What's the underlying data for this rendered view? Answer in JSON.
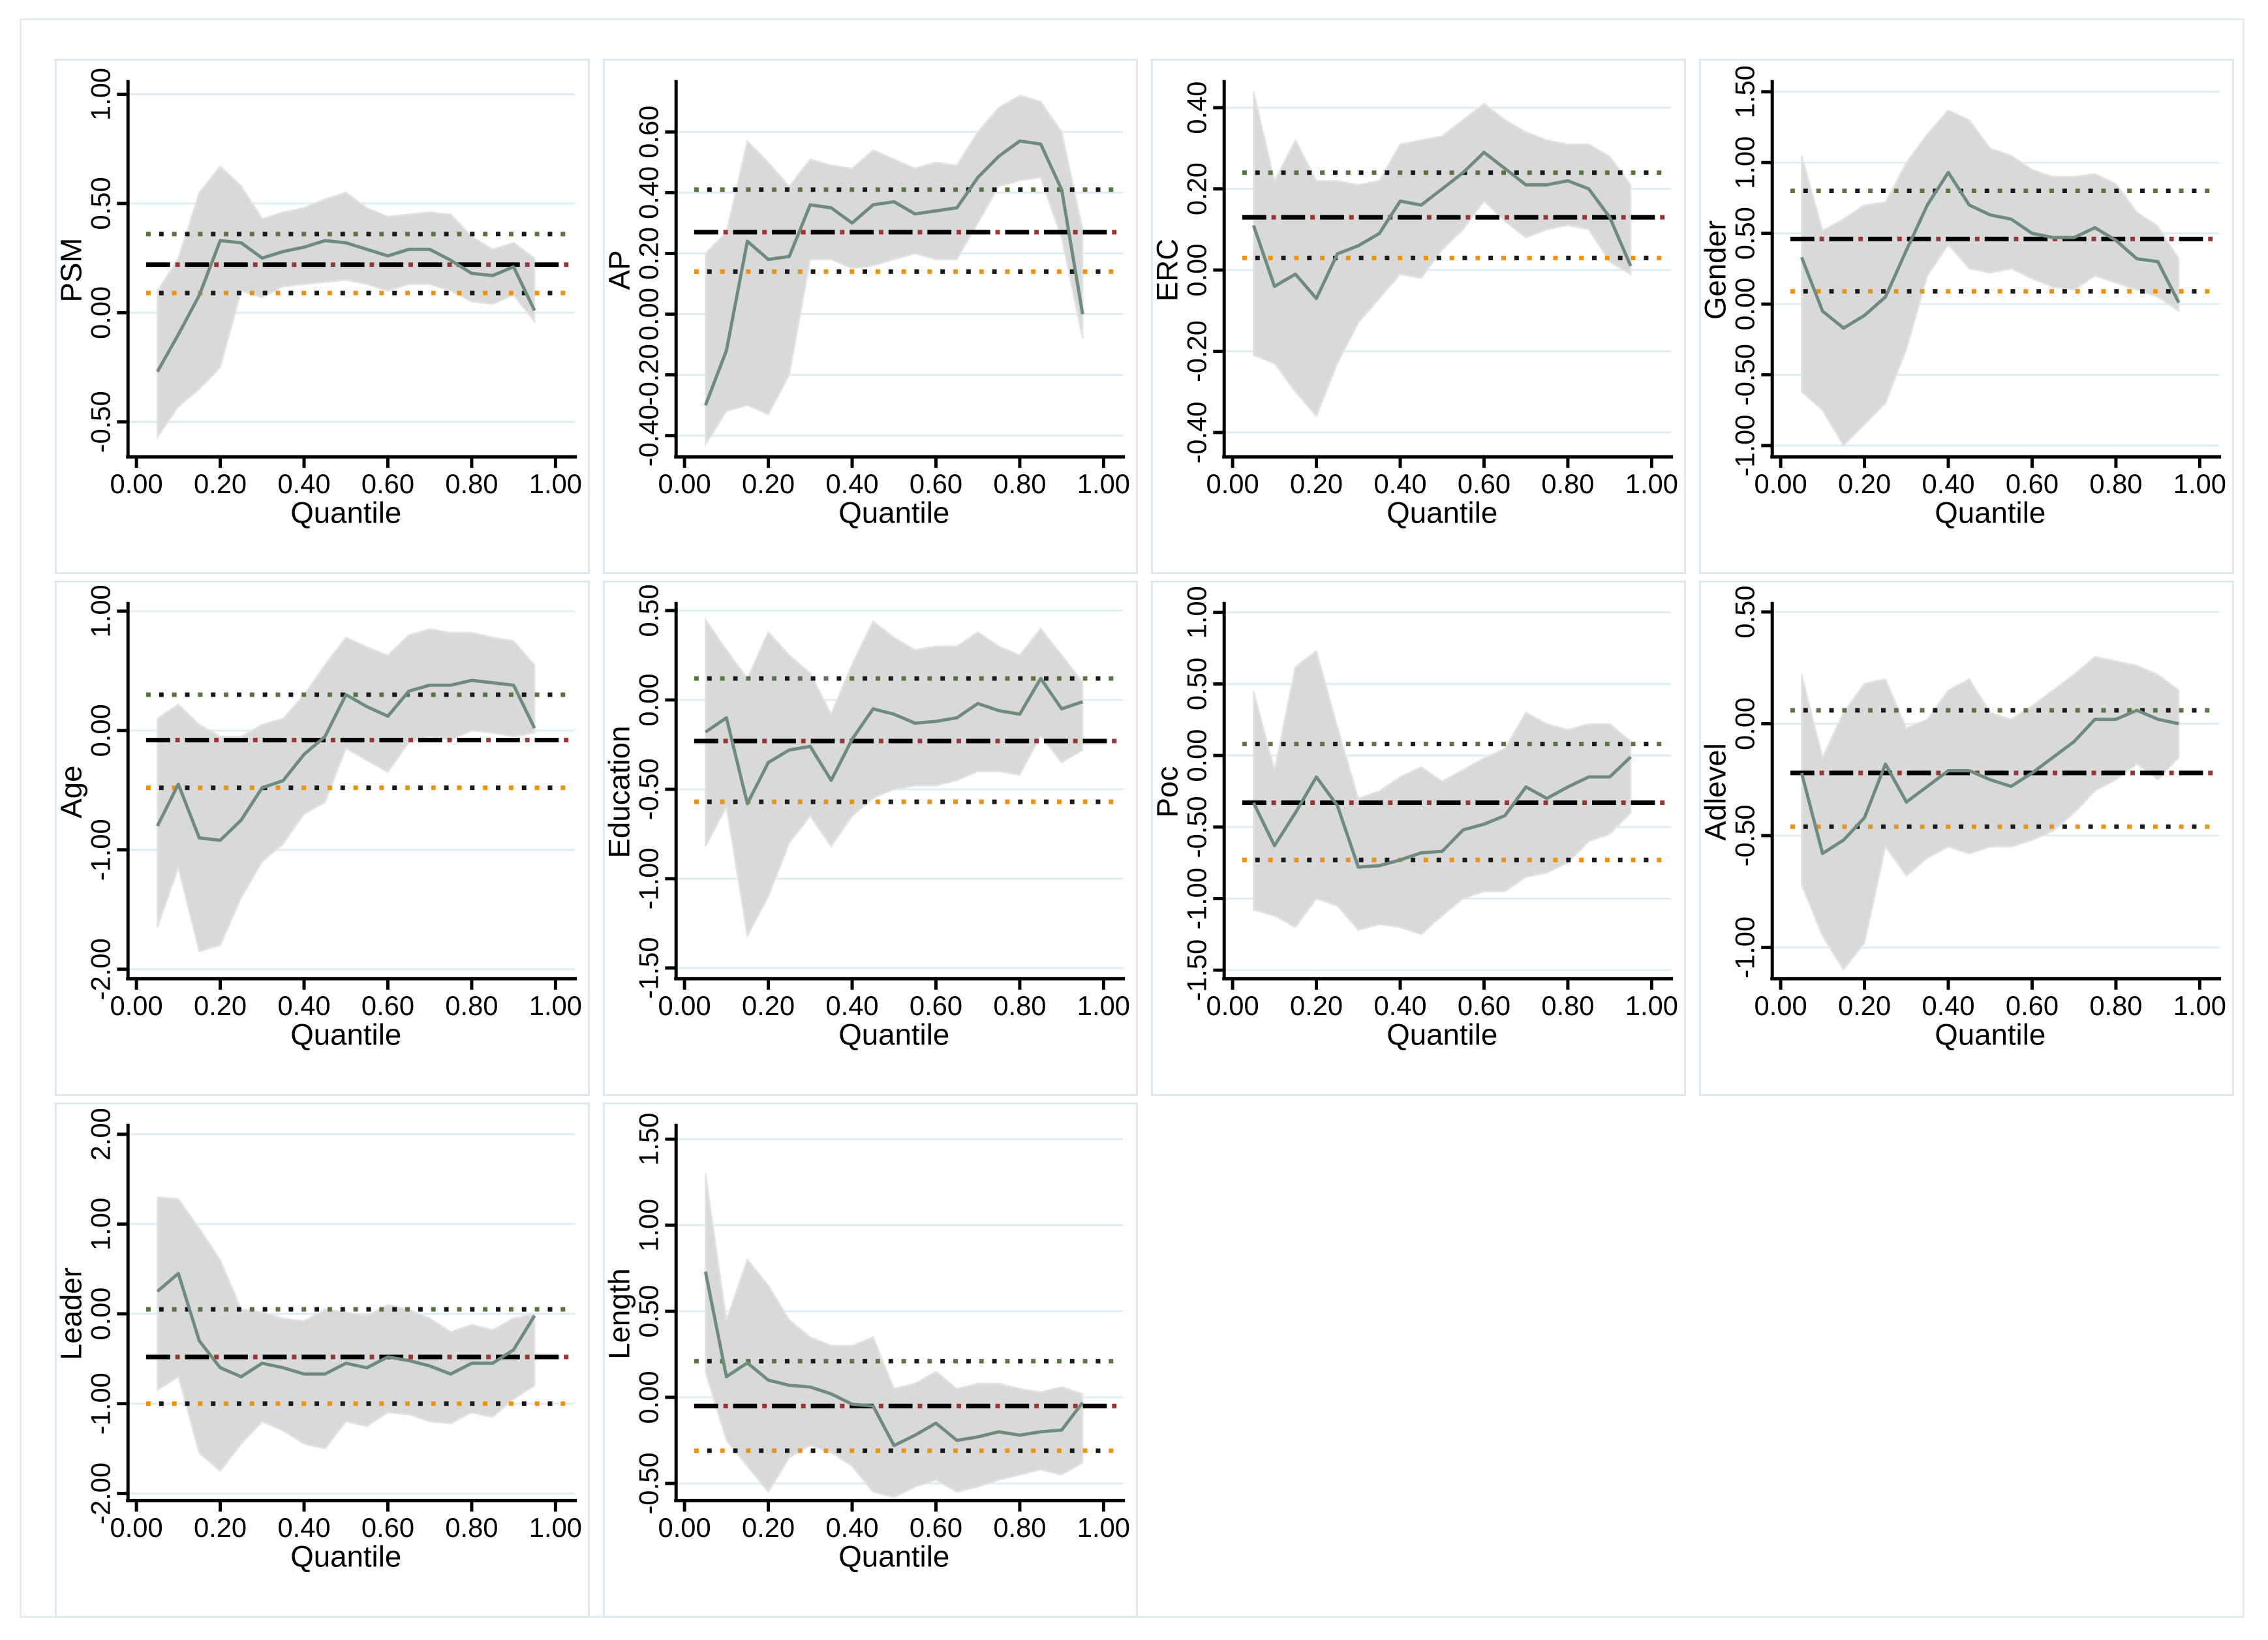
{
  "colors": {
    "qr_line": "#6e8b7d",
    "band_fill": "#d9d9d9",
    "band_edge": "#e4e4e4",
    "ols_dash_black": "#000000",
    "ols_dash_maroon": "#953735",
    "ci_dot_green": "#5c7444",
    "ci_dot_black": "#1a1a1a",
    "ci_dot_orange": "#ec9213",
    "grid": "#dfecf4",
    "axis": "#000000",
    "panel_border": "#dde9f2",
    "figure_border": "#e2edf5",
    "background": "#ffffff"
  },
  "chart_data": {
    "type": "line",
    "description": "Quantile regression coefficient estimates with 95% confidence bands versus OLS estimate and OLS confidence interval",
    "x_label": "Quantile",
    "x_ticks": [
      "0.00",
      "0.20",
      "0.40",
      "0.60",
      "0.80",
      "1.00"
    ],
    "x_range": [
      0,
      1
    ],
    "grid": "horizontal",
    "legend": false,
    "quantiles": [
      0.05,
      0.1,
      0.15,
      0.2,
      0.25,
      0.3,
      0.35,
      0.4,
      0.45,
      0.5,
      0.55,
      0.6,
      0.65,
      0.7,
      0.75,
      0.8,
      0.85,
      0.9,
      0.95
    ],
    "panels": [
      {
        "ylabel": "PSM",
        "ylim": [
          -0.66,
          1.05
        ],
        "y_ticks": [
          "1.00",
          "0.50",
          "0.00",
          "-0.50"
        ],
        "ols_estimate": 0.22,
        "ols_ci_upper": 0.36,
        "ols_ci_lower": 0.09,
        "series": {
          "quantile_estimates": [
            -0.27,
            -0.1,
            0.08,
            0.33,
            0.32,
            0.25,
            0.28,
            0.3,
            0.33,
            0.32,
            0.29,
            0.26,
            0.29,
            0.29,
            0.24,
            0.18,
            0.17,
            0.21,
            0.01
          ],
          "ci_upper": [
            0.1,
            0.25,
            0.55,
            0.67,
            0.58,
            0.43,
            0.46,
            0.48,
            0.52,
            0.55,
            0.48,
            0.44,
            0.45,
            0.46,
            0.45,
            0.35,
            0.29,
            0.32,
            0.25
          ],
          "ci_lower": [
            -0.57,
            -0.43,
            -0.35,
            -0.25,
            0.1,
            0.07,
            0.12,
            0.13,
            0.14,
            0.15,
            0.13,
            0.1,
            0.13,
            0.13,
            0.1,
            0.05,
            0.04,
            0.08,
            -0.04
          ]
        }
      },
      {
        "ylabel": "AP",
        "ylim": [
          -0.47,
          0.76
        ],
        "y_ticks": [
          "0.60",
          "0.40",
          "0.20",
          "0.00",
          "-0.20",
          "-0.40"
        ],
        "ols_estimate": 0.27,
        "ols_ci_upper": 0.41,
        "ols_ci_lower": 0.14,
        "series": {
          "quantile_estimates": [
            -0.3,
            -0.12,
            0.24,
            0.18,
            0.19,
            0.36,
            0.35,
            0.3,
            0.36,
            0.37,
            0.33,
            0.34,
            0.35,
            0.45,
            0.52,
            0.57,
            0.56,
            0.41,
            0.0
          ],
          "ci_upper": [
            0.2,
            0.27,
            0.57,
            0.5,
            0.42,
            0.51,
            0.49,
            0.48,
            0.54,
            0.51,
            0.48,
            0.5,
            0.49,
            0.6,
            0.68,
            0.72,
            0.7,
            0.6,
            0.28
          ],
          "ci_lower": [
            -0.43,
            -0.32,
            -0.3,
            -0.33,
            -0.2,
            0.18,
            0.18,
            0.15,
            0.16,
            0.18,
            0.2,
            0.18,
            0.18,
            0.3,
            0.42,
            0.44,
            0.45,
            0.25,
            -0.08
          ]
        }
      },
      {
        "ylabel": "ERC",
        "ylim": [
          -0.46,
          0.46
        ],
        "y_ticks": [
          "0.40",
          "0.20",
          "0.00",
          "-0.20",
          "-0.40"
        ],
        "ols_estimate": 0.13,
        "ols_ci_upper": 0.24,
        "ols_ci_lower": 0.03,
        "series": {
          "quantile_estimates": [
            0.11,
            -0.04,
            -0.01,
            -0.07,
            0.04,
            0.06,
            0.09,
            0.17,
            0.16,
            0.2,
            0.24,
            0.29,
            0.25,
            0.21,
            0.21,
            0.22,
            0.2,
            0.13,
            0.01
          ],
          "ci_upper": [
            0.44,
            0.22,
            0.32,
            0.22,
            0.22,
            0.21,
            0.22,
            0.31,
            0.32,
            0.33,
            0.37,
            0.41,
            0.37,
            0.34,
            0.32,
            0.31,
            0.31,
            0.28,
            0.21
          ],
          "ci_lower": [
            -0.21,
            -0.23,
            -0.3,
            -0.36,
            -0.23,
            -0.13,
            -0.07,
            -0.01,
            -0.02,
            0.05,
            0.1,
            0.17,
            0.12,
            0.08,
            0.1,
            0.11,
            0.1,
            0.02,
            -0.01
          ]
        }
      },
      {
        "ylabel": "Gender",
        "ylim": [
          -1.08,
          1.56
        ],
        "y_ticks": [
          "1.50",
          "1.00",
          "0.50",
          "0.00",
          "-0.50",
          "-1.00"
        ],
        "ols_estimate": 0.46,
        "ols_ci_upper": 0.8,
        "ols_ci_lower": 0.09,
        "series": {
          "quantile_estimates": [
            0.33,
            -0.05,
            -0.17,
            -0.08,
            0.05,
            0.38,
            0.7,
            0.93,
            0.7,
            0.63,
            0.6,
            0.5,
            0.47,
            0.47,
            0.54,
            0.45,
            0.32,
            0.3,
            0.01
          ],
          "ci_upper": [
            1.05,
            0.52,
            0.6,
            0.7,
            0.72,
            1.0,
            1.2,
            1.37,
            1.3,
            1.1,
            1.05,
            0.95,
            0.9,
            0.9,
            0.92,
            0.85,
            0.65,
            0.55,
            0.32
          ],
          "ci_lower": [
            -0.62,
            -0.75,
            -1.0,
            -0.85,
            -0.7,
            -0.32,
            0.2,
            0.42,
            0.25,
            0.22,
            0.25,
            0.18,
            0.12,
            0.1,
            0.2,
            0.15,
            0.1,
            0.05,
            -0.05
          ]
        }
      },
      {
        "ylabel": "Age",
        "ylim": [
          -2.08,
          1.05
        ],
        "y_ticks": [
          "1.00",
          "0.00",
          "-1.00",
          "-2.00"
        ],
        "ols_estimate": -0.08,
        "ols_ci_upper": 0.3,
        "ols_ci_lower": -0.48,
        "series": {
          "quantile_estimates": [
            -0.8,
            -0.45,
            -0.9,
            -0.92,
            -0.75,
            -0.48,
            -0.42,
            -0.2,
            -0.05,
            0.3,
            0.2,
            0.12,
            0.33,
            0.38,
            0.38,
            0.42,
            0.4,
            0.38,
            0.02
          ],
          "ci_upper": [
            0.1,
            0.22,
            0.05,
            -0.05,
            -0.05,
            0.05,
            0.1,
            0.3,
            0.55,
            0.78,
            0.7,
            0.63,
            0.8,
            0.85,
            0.82,
            0.82,
            0.78,
            0.75,
            0.55
          ],
          "ci_lower": [
            -1.65,
            -1.15,
            -1.85,
            -1.8,
            -1.4,
            -1.1,
            -0.95,
            -0.7,
            -0.6,
            -0.15,
            -0.25,
            -0.35,
            -0.1,
            -0.05,
            -0.08,
            0.0,
            -0.02,
            -0.05,
            -0.02
          ]
        }
      },
      {
        "ylabel": "Education",
        "ylim": [
          -1.56,
          0.53
        ],
        "y_ticks": [
          "0.50",
          "0.00",
          "-0.50",
          "-1.00",
          "-1.50"
        ],
        "ols_estimate": -0.23,
        "ols_ci_upper": 0.12,
        "ols_ci_lower": -0.57,
        "series": {
          "quantile_estimates": [
            -0.18,
            -0.1,
            -0.58,
            -0.35,
            -0.28,
            -0.26,
            -0.45,
            -0.22,
            -0.05,
            -0.08,
            -0.13,
            -0.12,
            -0.1,
            -0.02,
            -0.06,
            -0.08,
            0.12,
            -0.05,
            -0.01
          ],
          "ci_upper": [
            0.45,
            0.28,
            0.12,
            0.38,
            0.25,
            0.15,
            -0.08,
            0.2,
            0.44,
            0.35,
            0.28,
            0.3,
            0.3,
            0.38,
            0.3,
            0.25,
            0.4,
            0.25,
            0.1
          ],
          "ci_lower": [
            -0.82,
            -0.6,
            -1.32,
            -1.1,
            -0.8,
            -0.65,
            -0.82,
            -0.65,
            -0.55,
            -0.5,
            -0.48,
            -0.48,
            -0.45,
            -0.4,
            -0.4,
            -0.42,
            -0.2,
            -0.35,
            -0.28
          ]
        }
      },
      {
        "ylabel": "Poc",
        "ylim": [
          -1.56,
          1.05
        ],
        "y_ticks": [
          "1.00",
          "0.50",
          "0.00",
          "-0.50",
          "-1.00",
          "-1.50"
        ],
        "ols_estimate": -0.33,
        "ols_ci_upper": 0.08,
        "ols_ci_lower": -0.73,
        "series": {
          "quantile_estimates": [
            -0.33,
            -0.63,
            -0.4,
            -0.15,
            -0.35,
            -0.78,
            -0.77,
            -0.73,
            -0.68,
            -0.67,
            -0.52,
            -0.48,
            -0.42,
            -0.22,
            -0.3,
            -0.22,
            -0.15,
            -0.15,
            -0.01
          ],
          "ci_upper": [
            0.45,
            -0.1,
            0.62,
            0.73,
            0.2,
            -0.3,
            -0.25,
            -0.15,
            -0.08,
            -0.18,
            -0.1,
            -0.02,
            0.05,
            0.3,
            0.22,
            0.18,
            0.22,
            0.22,
            0.1
          ],
          "ci_lower": [
            -1.08,
            -1.12,
            -1.2,
            -1.0,
            -1.05,
            -1.22,
            -1.18,
            -1.2,
            -1.25,
            -1.12,
            -1.0,
            -0.95,
            -0.95,
            -0.85,
            -0.82,
            -0.75,
            -0.6,
            -0.55,
            -0.4
          ]
        }
      },
      {
        "ylabel": "Adlevel",
        "ylim": [
          -1.14,
          0.53
        ],
        "y_ticks": [
          "0.50",
          "0.00",
          "-0.50",
          "-1.00"
        ],
        "ols_estimate": -0.22,
        "ols_ci_upper": 0.06,
        "ols_ci_lower": -0.46,
        "series": {
          "quantile_estimates": [
            -0.22,
            -0.58,
            -0.52,
            -0.42,
            -0.18,
            -0.35,
            -0.28,
            -0.21,
            -0.21,
            -0.25,
            -0.28,
            -0.22,
            -0.15,
            -0.08,
            0.02,
            0.02,
            0.06,
            0.02,
            0.0
          ],
          "ci_upper": [
            0.22,
            -0.15,
            0.05,
            0.18,
            0.2,
            -0.02,
            0.02,
            0.15,
            0.2,
            0.05,
            0.02,
            0.08,
            0.15,
            0.22,
            0.3,
            0.28,
            0.26,
            0.22,
            0.15
          ],
          "ci_lower": [
            -0.72,
            -0.95,
            -1.1,
            -0.98,
            -0.55,
            -0.68,
            -0.6,
            -0.55,
            -0.58,
            -0.55,
            -0.55,
            -0.52,
            -0.48,
            -0.4,
            -0.3,
            -0.25,
            -0.18,
            -0.25,
            -0.15
          ]
        }
      },
      {
        "ylabel": "Leader",
        "ylim": [
          -2.08,
          2.08
        ],
        "y_ticks": [
          "2.00",
          "1.00",
          "0.00",
          "-1.00",
          "-2.00"
        ],
        "ols_estimate": -0.48,
        "ols_ci_upper": 0.05,
        "ols_ci_lower": -1.0,
        "series": {
          "quantile_estimates": [
            0.25,
            0.45,
            -0.3,
            -0.6,
            -0.7,
            -0.55,
            -0.6,
            -0.67,
            -0.67,
            -0.55,
            -0.6,
            -0.48,
            -0.52,
            -0.58,
            -0.67,
            -0.55,
            -0.55,
            -0.4,
            -0.02
          ],
          "ci_upper": [
            1.3,
            1.28,
            0.95,
            0.6,
            0.05,
            0.02,
            -0.05,
            -0.08,
            0.05,
            0.02,
            -0.02,
            0.1,
            0.05,
            -0.05,
            -0.2,
            -0.12,
            -0.18,
            -0.05,
            0.0
          ],
          "ci_lower": [
            -0.85,
            -0.7,
            -1.55,
            -1.75,
            -1.45,
            -1.2,
            -1.3,
            -1.45,
            -1.5,
            -1.2,
            -1.25,
            -1.1,
            -1.12,
            -1.2,
            -1.22,
            -1.1,
            -1.15,
            -0.95,
            -0.8
          ]
        }
      },
      {
        "ylabel": "Length",
        "ylim": [
          -0.6,
          1.57
        ],
        "y_ticks": [
          "1.50",
          "1.00",
          "0.50",
          "0.00",
          "-0.50"
        ],
        "ols_estimate": -0.05,
        "ols_ci_upper": 0.21,
        "ols_ci_lower": -0.31,
        "series": {
          "quantile_estimates": [
            0.73,
            0.12,
            0.2,
            0.1,
            0.07,
            0.06,
            0.02,
            -0.04,
            -0.05,
            -0.28,
            -0.22,
            -0.15,
            -0.25,
            -0.23,
            -0.2,
            -0.22,
            -0.2,
            -0.19,
            -0.03
          ],
          "ci_upper": [
            1.3,
            0.45,
            0.8,
            0.65,
            0.45,
            0.35,
            0.3,
            0.3,
            0.35,
            0.05,
            0.08,
            0.15,
            0.05,
            0.08,
            0.08,
            0.05,
            0.03,
            0.06,
            0.02
          ],
          "ci_lower": [
            0.15,
            -0.25,
            -0.4,
            -0.55,
            -0.35,
            -0.28,
            -0.32,
            -0.4,
            -0.55,
            -0.58,
            -0.52,
            -0.48,
            -0.55,
            -0.52,
            -0.48,
            -0.45,
            -0.42,
            -0.45,
            -0.38
          ]
        }
      }
    ]
  }
}
